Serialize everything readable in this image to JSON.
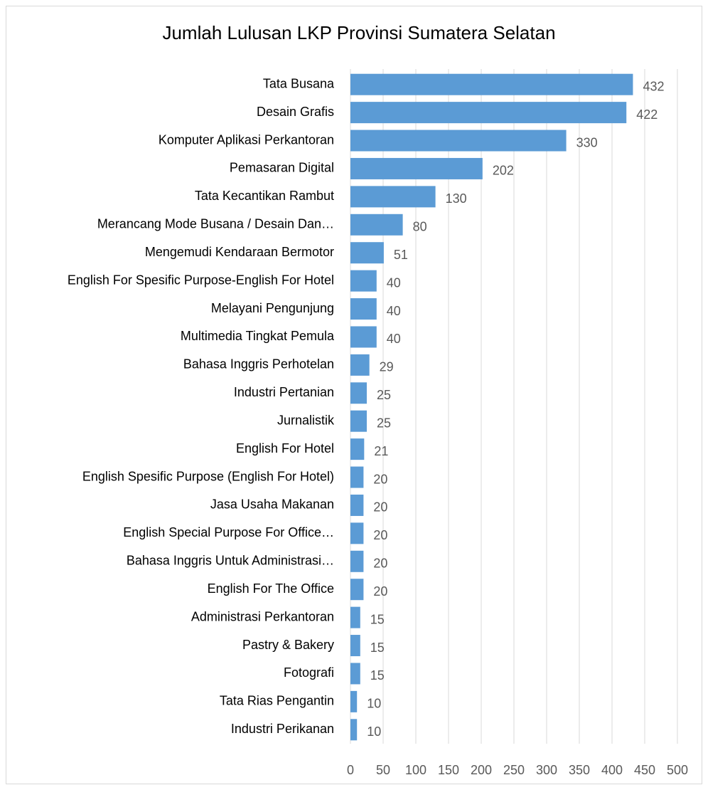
{
  "chart_data": {
    "type": "bar",
    "orientation": "horizontal",
    "title": "Jumlah Lulusan LKP Provinsi Sumatera Selatan",
    "categories": [
      "Tata Busana",
      "Desain Grafis",
      "Komputer Aplikasi Perkantoran",
      "Pemasaran Digital",
      "Tata Kecantikan Rambut",
      "Merancang Mode Busana / Desain Dan…",
      "Mengemudi Kendaraan Bermotor",
      "English For Spesific Purpose-English For Hotel",
      "Melayani Pengunjung",
      "Multimedia Tingkat Pemula",
      "Bahasa Inggris Perhotelan",
      "Industri Pertanian",
      "Jurnalistik",
      "English For Hotel",
      "English Spesific Purpose (English For Hotel)",
      "Jasa Usaha Makanan",
      "English Special Purpose For Office…",
      "Bahasa Inggris Untuk Administrasi…",
      "English For The Office",
      "Administrasi Perkantoran",
      "Pastry & Bakery",
      "Fotografi",
      "Tata Rias Pengantin",
      "Industri Perikanan"
    ],
    "values": [
      432,
      422,
      330,
      202,
      130,
      80,
      51,
      40,
      40,
      40,
      29,
      25,
      25,
      21,
      20,
      20,
      20,
      20,
      20,
      15,
      15,
      15,
      10,
      10
    ],
    "color": "#5b9bd5",
    "xlim": [
      0,
      500
    ],
    "xticks": [
      0,
      50,
      100,
      150,
      200,
      250,
      300,
      350,
      400,
      450,
      500
    ],
    "grid": true
  }
}
